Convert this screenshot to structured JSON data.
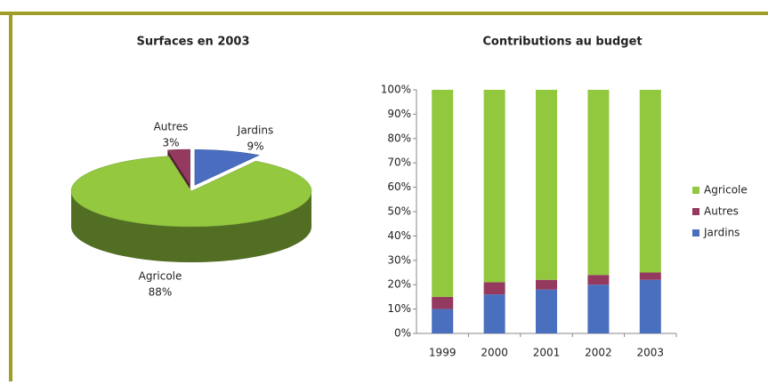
{
  "chart_data": [
    {
      "type": "pie3d",
      "title": "Surfaces en 2003",
      "categories": [
        "Jardins",
        "Autres",
        "Agricole"
      ],
      "values": [
        9,
        3,
        88
      ],
      "value_labels": [
        "9%",
        "3%",
        "88%"
      ],
      "colors": [
        "#4a6dc0",
        "#953a5f",
        "#93c83f"
      ]
    },
    {
      "type": "stacked_bar",
      "title": "Contributions au budget",
      "categories": [
        "1999",
        "2000",
        "2001",
        "2002",
        "2003"
      ],
      "series": [
        {
          "name": "Jardins",
          "color": "#4a6fbf",
          "values": [
            10,
            16,
            18,
            20,
            22
          ]
        },
        {
          "name": "Autres",
          "color": "#953a5f",
          "values": [
            5,
            5,
            4,
            4,
            3
          ]
        },
        {
          "name": "Agricole",
          "color": "#92c83e",
          "values": [
            85,
            79,
            78,
            76,
            75
          ]
        }
      ],
      "ylim": [
        0,
        100
      ],
      "yticks": [
        {
          "value": 0,
          "label": "0%"
        },
        {
          "value": 10,
          "label": "10%"
        },
        {
          "value": 20,
          "label": "20%"
        },
        {
          "value": 30,
          "label": "30%"
        },
        {
          "value": 40,
          "label": "40%"
        },
        {
          "value": 50,
          "label": "50%"
        },
        {
          "value": 60,
          "label": "60%"
        },
        {
          "value": 70,
          "label": "70%"
        },
        {
          "value": 80,
          "label": "80%"
        },
        {
          "value": 90,
          "label": "90%"
        },
        {
          "value": 100,
          "label": "100%"
        }
      ],
      "legend": "right"
    }
  ]
}
